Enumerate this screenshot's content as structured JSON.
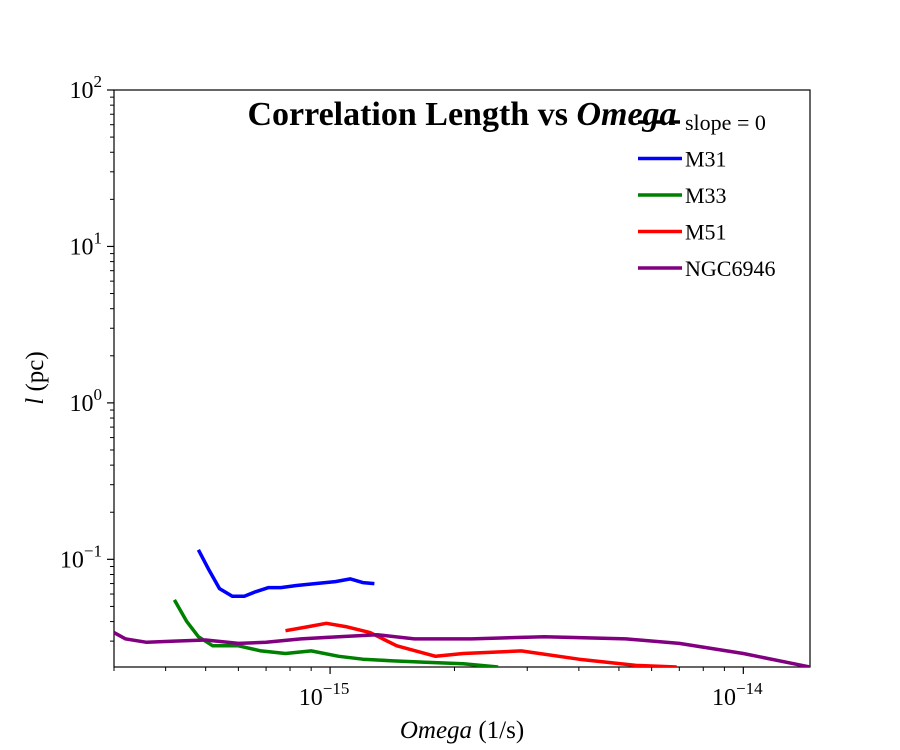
{
  "chart_data": {
    "type": "line",
    "title": "Correlation Length vs",
    "title_italic": "Omega",
    "xlabel_italic": "Omega",
    "xlabel_rest": " (1/s)",
    "ylabel_italic": "l",
    "ylabel_rest": " (pc)",
    "xscale": "log",
    "yscale": "log",
    "xlim": [
      3e-16,
      1.45e-14
    ],
    "ylim": [
      0.0205,
      100
    ],
    "grid": false,
    "legend_position": "upper right",
    "x_ticks": [
      {
        "base": "10",
        "exp": "−15",
        "value": 1e-15
      },
      {
        "base": "10",
        "exp": "−14",
        "value": 1e-14
      }
    ],
    "y_ticks": [
      {
        "base": "10",
        "exp": "−1",
        "value": 0.1
      },
      {
        "base": "10",
        "exp": "0",
        "value": 1
      },
      {
        "base": "10",
        "exp": "1",
        "value": 10
      },
      {
        "base": "10",
        "exp": "2",
        "value": 100
      }
    ],
    "series": [
      {
        "name": "slope = 0",
        "color": "#000000",
        "dashed": true,
        "x": [],
        "y": []
      },
      {
        "name": "M31",
        "color": "#0000ff",
        "x": [
          4.8e-16,
          5.1e-16,
          5.4e-16,
          5.8e-16,
          6.2e-16,
          6.6e-16,
          7.1e-16,
          7.6e-16,
          8.3e-16,
          9.2e-16,
          1.03e-15,
          1.12e-15,
          1.2e-15,
          1.28e-15
        ],
        "y": [
          0.115,
          0.085,
          0.065,
          0.058,
          0.058,
          0.062,
          0.066,
          0.066,
          0.068,
          0.07,
          0.072,
          0.075,
          0.071,
          0.07
        ]
      },
      {
        "name": "M33",
        "color": "#008000",
        "x": [
          4.2e-16,
          4.5e-16,
          4.8e-16,
          5.2e-16,
          6e-16,
          6.8e-16,
          7.8e-16,
          9e-16,
          1.05e-15,
          1.2e-15,
          1.4e-15,
          1.7e-15,
          2.1e-15,
          2.55e-15
        ],
        "y": [
          0.055,
          0.04,
          0.032,
          0.028,
          0.028,
          0.026,
          0.025,
          0.026,
          0.024,
          0.023,
          0.0225,
          0.022,
          0.0215,
          0.0205
        ]
      },
      {
        "name": "M51",
        "color": "#ff0000",
        "x": [
          7.8e-16,
          8.8e-16,
          9.8e-16,
          1.1e-15,
          1.25e-15,
          1.45e-15,
          1.8e-15,
          2.1e-15,
          2.9e-15,
          4e-15,
          5.5e-15,
          6.9e-15
        ],
        "y": [
          0.035,
          0.037,
          0.039,
          0.037,
          0.034,
          0.028,
          0.024,
          0.025,
          0.026,
          0.023,
          0.021,
          0.0205
        ]
      },
      {
        "name": "NGC6946",
        "color": "#800080",
        "x": [
          3e-16,
          3.2e-16,
          3.6e-16,
          4.2e-16,
          5e-16,
          6e-16,
          7e-16,
          8.5e-16,
          1.05e-15,
          1.3e-15,
          1.6e-15,
          2.2e-15,
          3.3e-15,
          5.2e-15,
          7e-15,
          1e-14,
          1.45e-14
        ],
        "y": [
          0.034,
          0.031,
          0.0295,
          0.03,
          0.0305,
          0.029,
          0.0295,
          0.031,
          0.032,
          0.033,
          0.031,
          0.031,
          0.032,
          0.031,
          0.029,
          0.025,
          0.0205
        ]
      }
    ]
  }
}
